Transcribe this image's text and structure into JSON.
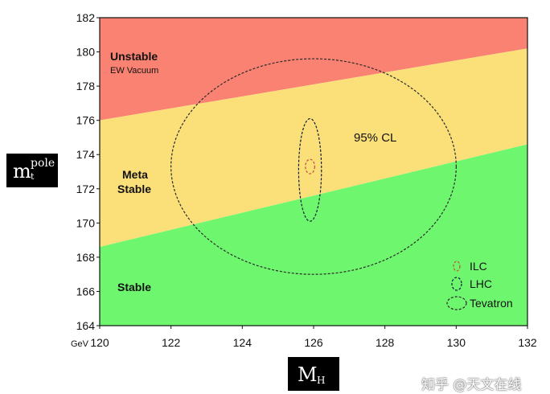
{
  "chart_data": {
    "type": "area",
    "xlabel_main": "M",
    "xlabel_sub": "H",
    "ylabel_main": "m",
    "ylabel_sup": "pole",
    "ylabel_sub": "t",
    "x_unit": "GeV",
    "xlim": [
      120,
      132
    ],
    "ylim": [
      164,
      182
    ],
    "x_ticks": [
      "120",
      "122",
      "124",
      "126",
      "128",
      "130",
      "132"
    ],
    "y_ticks": [
      "164",
      "166",
      "168",
      "170",
      "172",
      "174",
      "176",
      "178",
      "180",
      "182"
    ],
    "grid": false,
    "bands": [
      {
        "name": "Unstable",
        "sublabel": "EW Vacuum",
        "color": "#fa8272",
        "lower_boundary": {
          "x": [
            120,
            132
          ],
          "y": [
            176.0,
            180.2
          ]
        }
      },
      {
        "name": "Meta Stable",
        "color": "#fbe07a",
        "lower_boundary": {
          "x": [
            120,
            132
          ],
          "y": [
            168.6,
            174.6
          ]
        }
      },
      {
        "name": "Stable",
        "color": "#6ef76e"
      }
    ],
    "ellipses": [
      {
        "name": "ILC",
        "center": [
          125.9,
          173.3
        ],
        "semi_axes": [
          0.13,
          0.42
        ],
        "color": "#c0503a"
      },
      {
        "name": "LHC",
        "center": [
          125.9,
          173.1
        ],
        "semi_axes": [
          0.32,
          3.0
        ],
        "color": "#0d1b38"
      },
      {
        "name": "Tevatron",
        "center": [
          126.0,
          173.3
        ],
        "semi_axes": [
          4.0,
          6.3
        ],
        "color": "#2a2a2a"
      }
    ],
    "annotation": "95% CL",
    "legend": [
      "ILC",
      "LHC",
      "Tevatron"
    ],
    "legend_position": "bottom-right"
  },
  "labels": {
    "unstable": "Unstable",
    "ew_vacuum": "EW Vacuum",
    "meta": "Meta",
    "stable_meta": "Stable",
    "stable": "Stable",
    "cl": "95% CL"
  },
  "watermark": "知乎 @天文在线"
}
